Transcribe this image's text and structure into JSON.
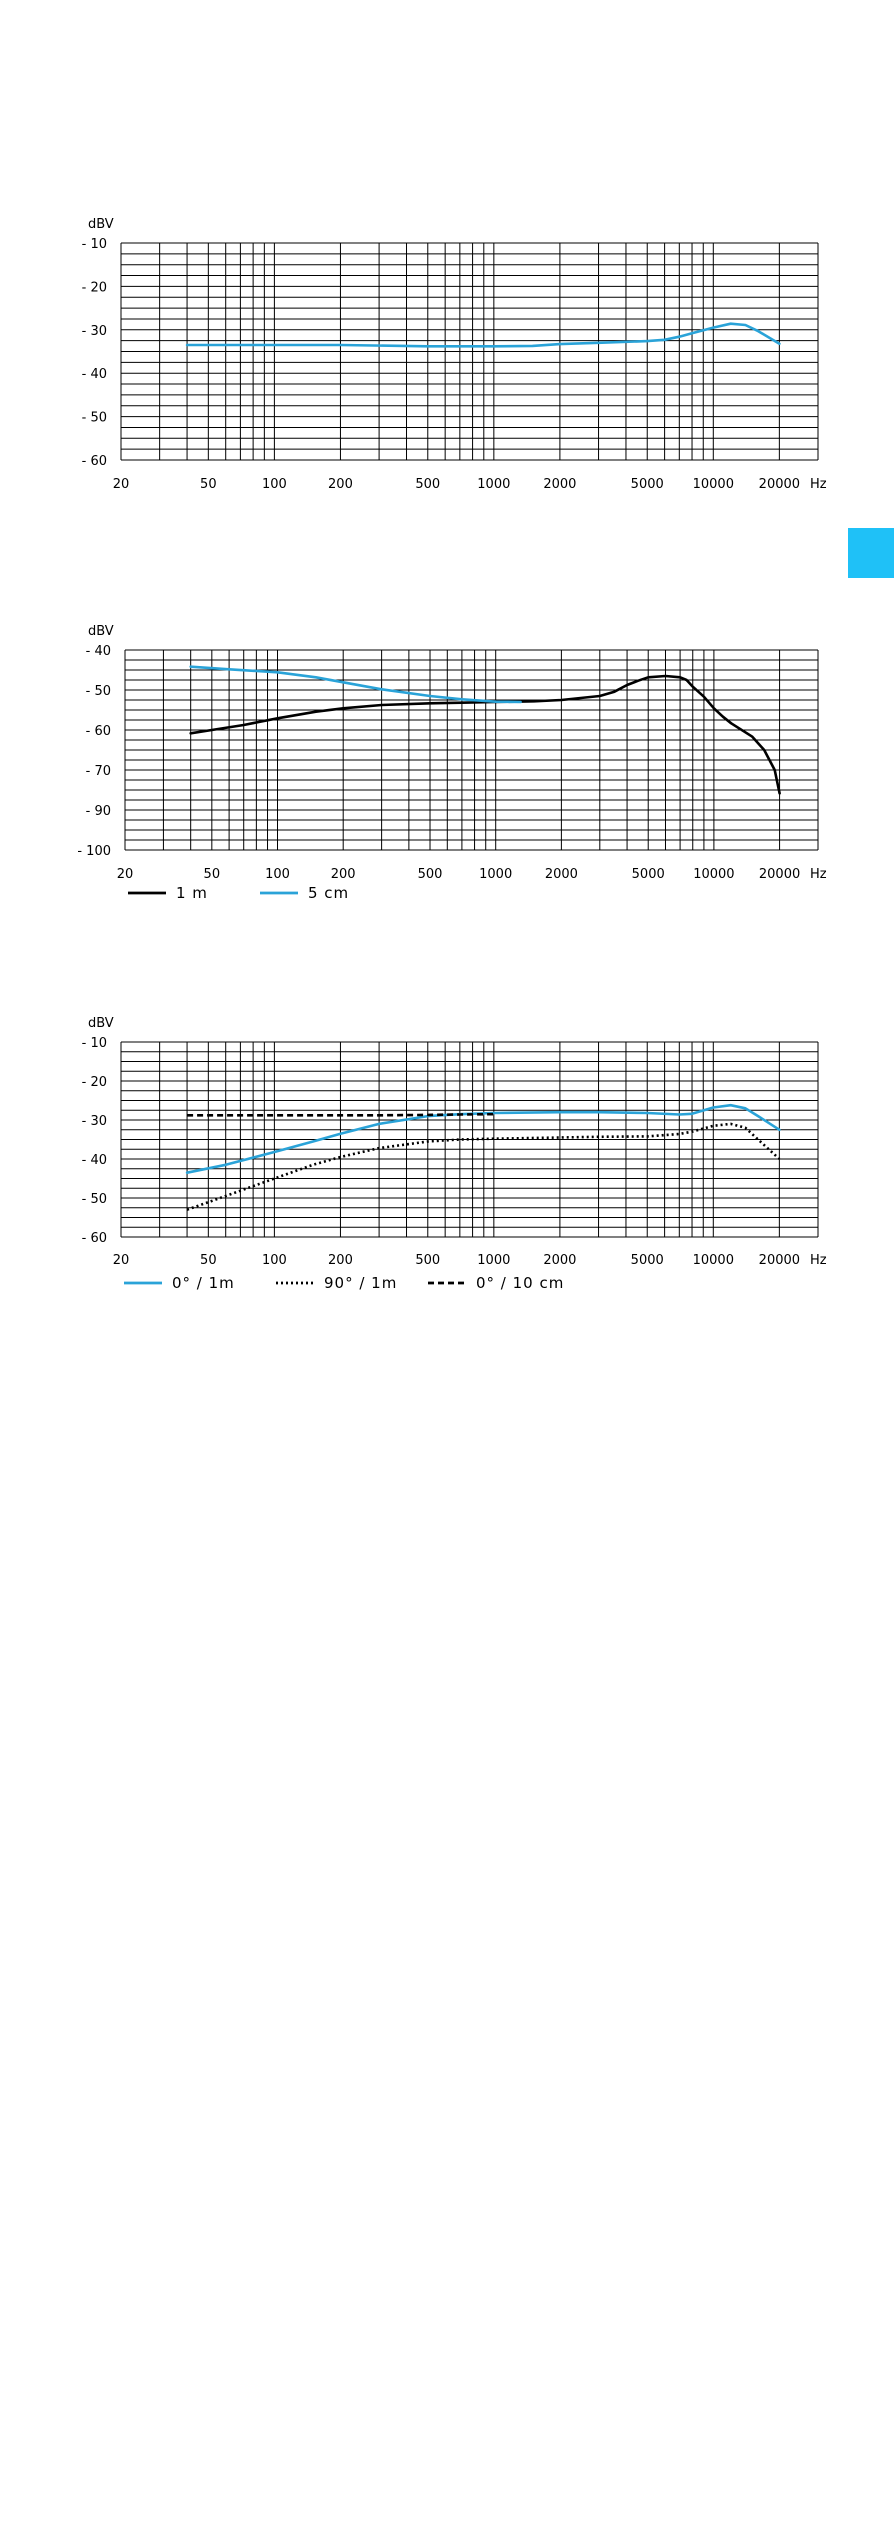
{
  "page": {
    "accent": "#1fbcf0"
  },
  "colors": {
    "blue": "#2aa3d8",
    "black": "#000000",
    "grid": "#000000",
    "tab": "#1fc1f7"
  },
  "chart_data": [
    {
      "type": "line",
      "ylabel": "dBV",
      "xunit": "Hz",
      "xscale": "log",
      "xlim": [
        20,
        30000
      ],
      "ylim": [
        -60,
        -10
      ],
      "xticks": [
        20,
        50,
        100,
        200,
        500,
        1000,
        2000,
        5000,
        10000,
        20000
      ],
      "yticks": [
        -10,
        -20,
        -30,
        -40,
        -50,
        -60
      ],
      "yminor": 2,
      "grid": true,
      "series": [
        {
          "color": "#2aa3d8",
          "style": "solid",
          "x": [
            40,
            60,
            100,
            200,
            500,
            1000,
            1500,
            2000,
            3000,
            5000,
            6000,
            7000,
            8000,
            10000,
            12000,
            14000,
            16000,
            20000
          ],
          "y": [
            -33.5,
            -33.5,
            -33.5,
            -33.5,
            -33.8,
            -33.8,
            -33.7,
            -33.3,
            -33.0,
            -32.6,
            -32.3,
            -31.6,
            -30.8,
            -29.5,
            -28.6,
            -28.9,
            -30.3,
            -33.2
          ]
        }
      ]
    },
    {
      "type": "line",
      "ylabel": "dBV",
      "xunit": "Hz",
      "xscale": "log",
      "xlim": [
        20,
        30000
      ],
      "ylim": [
        -100,
        -40
      ],
      "xticks": [
        20,
        50,
        100,
        200,
        500,
        1000,
        2000,
        5000,
        10000,
        20000
      ],
      "yticks": [
        -40,
        -50,
        -60,
        -70,
        -90,
        -100
      ],
      "yminor": 2,
      "grid": true,
      "legend_position": "bottom-left",
      "series": [
        {
          "name": "1 m",
          "color": "#000000",
          "style": "solid",
          "x": [
            40,
            50,
            70,
            100,
            150,
            200,
            300,
            500,
            700,
            1000,
            1500,
            2000,
            3000,
            3500,
            4000,
            4500,
            5000,
            6000,
            7000,
            7500,
            8000,
            9000,
            10000,
            11000,
            12000,
            15000,
            17000,
            19000,
            20000
          ],
          "y": [
            -65,
            -64,
            -62.5,
            -60.5,
            -58.5,
            -57.5,
            -56.5,
            -56,
            -55.8,
            -55.6,
            -55.4,
            -55.0,
            -53.8,
            -52.5,
            -50.5,
            -49.2,
            -48.2,
            -47.8,
            -48.2,
            -49,
            -51,
            -54,
            -57.5,
            -60,
            -62,
            -66,
            -70,
            -76,
            -83
          ]
        },
        {
          "name": "5 cm",
          "color": "#2aa3d8",
          "style": "solid",
          "x": [
            40,
            60,
            100,
            150,
            200,
            300,
            500,
            700,
            1000,
            1300
          ],
          "y": [
            -45,
            -45.8,
            -46.7,
            -48.2,
            -49.7,
            -51.8,
            -53.8,
            -54.8,
            -55.5,
            -55.6
          ]
        }
      ]
    },
    {
      "type": "line",
      "ylabel": "dBV",
      "xunit": "Hz",
      "xscale": "log",
      "xlim": [
        20,
        30000
      ],
      "ylim": [
        -60,
        -10
      ],
      "xticks": [
        20,
        50,
        100,
        200,
        500,
        1000,
        2000,
        5000,
        10000,
        20000
      ],
      "yticks": [
        -10,
        -20,
        -30,
        -40,
        -50,
        -60
      ],
      "yminor": 2,
      "grid": true,
      "legend_position": "bottom-left",
      "series": [
        {
          "name": "0° / 1m",
          "color": "#2aa3d8",
          "style": "solid",
          "x": [
            40,
            60,
            100,
            150,
            200,
            300,
            500,
            700,
            1000,
            2000,
            3000,
            5000,
            7000,
            8000,
            10000,
            12000,
            14000,
            16000,
            20000
          ],
          "y": [
            -43.5,
            -41.5,
            -38.2,
            -35.5,
            -33.5,
            -31,
            -29,
            -28.5,
            -28.2,
            -28,
            -28,
            -28.2,
            -28.6,
            -28.4,
            -26.8,
            -26.2,
            -27,
            -29,
            -32.5
          ]
        },
        {
          "name": "90° / 1m",
          "color": "#000000",
          "style": "dotted",
          "x": [
            40,
            60,
            100,
            150,
            200,
            300,
            500,
            700,
            1000,
            2000,
            3000,
            5000,
            7000,
            8000,
            10000,
            12000,
            14000,
            16000,
            20000
          ],
          "y": [
            -53,
            -49.5,
            -45,
            -41.5,
            -39.5,
            -37.2,
            -35.5,
            -35,
            -34.8,
            -34.5,
            -34.3,
            -34.2,
            -33.6,
            -33,
            -31.5,
            -31,
            -32,
            -35,
            -40
          ]
        },
        {
          "name": "0° / 10 cm",
          "color": "#000000",
          "style": "dashed",
          "x": [
            40,
            60,
            100,
            150,
            200,
            300,
            500,
            700,
            1000
          ],
          "y": [
            -28.8,
            -28.8,
            -28.8,
            -28.8,
            -28.8,
            -28.8,
            -28.7,
            -28.6,
            -28.5
          ]
        }
      ]
    }
  ]
}
